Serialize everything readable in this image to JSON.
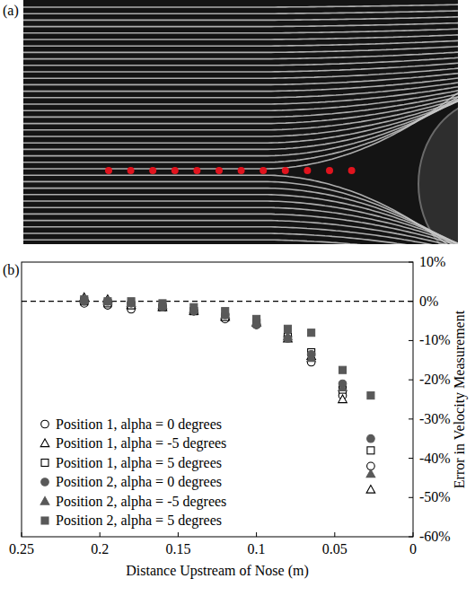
{
  "panel_a": {
    "label": "(a)"
  },
  "chart_data": {
    "type": "scatter",
    "panel_label": "(b)",
    "x_label": "Distance Upstream of Nose (m)",
    "y_label": "Error in Velocity Measurement",
    "x": [
      0.21,
      0.195,
      0.18,
      0.16,
      0.14,
      0.12,
      0.1,
      0.08,
      0.065,
      0.045,
      0.027
    ],
    "xlim": [
      0.25,
      0
    ],
    "xticks": [
      0.25,
      0.2,
      0.15,
      0.1,
      0.05,
      0
    ],
    "ylim": [
      -60,
      10
    ],
    "yticks": [
      {
        "value": 10,
        "label": "10%"
      },
      {
        "value": 0,
        "label": "0%"
      },
      {
        "value": -10,
        "label": "-10%"
      },
      {
        "value": -20,
        "label": "-20%"
      },
      {
        "value": -30,
        "label": "-30%"
      },
      {
        "value": -40,
        "label": "-40%"
      },
      {
        "value": -50,
        "label": "-50%"
      },
      {
        "value": -60,
        "label": "-60%"
      }
    ],
    "reference_lines": [
      {
        "y": 0,
        "line_style": "dashed"
      }
    ],
    "legend": "lower left",
    "grid": false,
    "series": [
      {
        "name": "Position 1, alpha = 0 degrees",
        "color": "#000000",
        "marker": "open-circle",
        "values": [
          -0.5,
          -1,
          -2,
          -1.5,
          -2.5,
          -4.5,
          -6,
          -9,
          -15.5,
          -24,
          -42
        ]
      },
      {
        "name": "Position 1, alpha = -5 degrees",
        "color": "#000000",
        "marker": "open-triangle",
        "values": [
          1,
          0.5,
          -1,
          -1.5,
          -2.5,
          -4,
          -5.5,
          -9.5,
          -14,
          -25,
          -48
        ]
      },
      {
        "name": "Position 1, alpha = 5 degrees",
        "color": "#000000",
        "marker": "open-square",
        "values": [
          0,
          -0.5,
          -1,
          -1.5,
          -2.5,
          -4,
          -5.5,
          -9,
          -13,
          -22.5,
          -38
        ]
      },
      {
        "name": "Position 2, alpha = 0 degrees",
        "color": "#595959",
        "marker": "filled-circle",
        "values": [
          0,
          0,
          -0.5,
          -1.5,
          -2.5,
          -3.5,
          -6,
          -9.5,
          -13.5,
          -21,
          -35
        ]
      },
      {
        "name": "Position 2, alpha = -5 degrees",
        "color": "#595959",
        "marker": "filled-triangle",
        "values": [
          0.5,
          0,
          -0.5,
          -1,
          -2,
          -3.5,
          -5.5,
          -9,
          -14.5,
          -22,
          -44
        ]
      },
      {
        "name": "Position 2, alpha = 5 degrees",
        "color": "#595959",
        "marker": "filled-square",
        "values": [
          0.5,
          0,
          0,
          -0.5,
          -1.5,
          -2.5,
          -4.5,
          -7,
          -8,
          -17.5,
          -24
        ]
      }
    ]
  }
}
